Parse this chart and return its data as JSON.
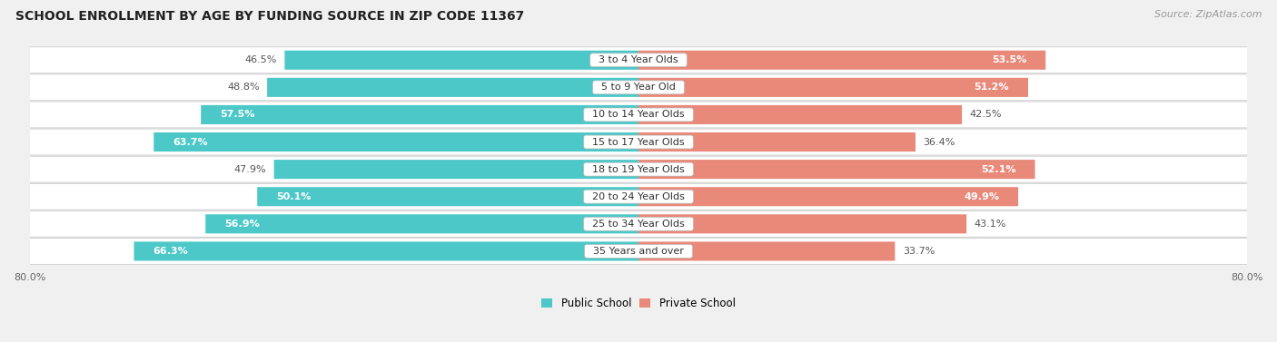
{
  "title": "SCHOOL ENROLLMENT BY AGE BY FUNDING SOURCE IN ZIP CODE 11367",
  "source": "Source: ZipAtlas.com",
  "categories": [
    "3 to 4 Year Olds",
    "5 to 9 Year Old",
    "10 to 14 Year Olds",
    "15 to 17 Year Olds",
    "18 to 19 Year Olds",
    "20 to 24 Year Olds",
    "25 to 34 Year Olds",
    "35 Years and over"
  ],
  "public_values": [
    46.5,
    48.8,
    57.5,
    63.7,
    47.9,
    50.1,
    56.9,
    66.3
  ],
  "private_values": [
    53.5,
    51.2,
    42.5,
    36.4,
    52.1,
    49.9,
    43.1,
    33.7
  ],
  "public_color": "#4dc8c8",
  "private_color": "#e8897a",
  "bg_color": "#f0f0f0",
  "axis_limit": 80.0,
  "label_fontsize": 8.0,
  "title_fontsize": 10.0,
  "legend_fontsize": 8.5,
  "source_fontsize": 8.0
}
